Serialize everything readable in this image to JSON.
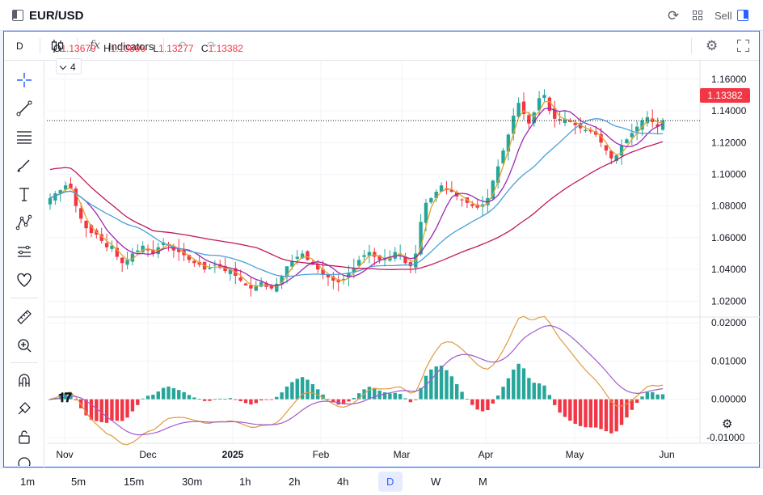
{
  "header": {
    "symbol": "EUR/USD",
    "sell_label": "Sell"
  },
  "toolbar": {
    "interval": "D",
    "indicators_label": "Indicators"
  },
  "legend": {
    "open_label": "O",
    "open": "1.13679",
    "high_label": "H",
    "high": "1.13896",
    "low_label": "L",
    "low": "1.13277",
    "close_label": "C",
    "close": "1.13382",
    "indicator_count": "4"
  },
  "price_axis": {
    "ticks": [
      "1.16000",
      "1.14000",
      "1.12000",
      "1.10000",
      "1.08000",
      "1.06000",
      "1.04000",
      "1.02000"
    ],
    "current_price": "1.13382"
  },
  "osc_axis": {
    "ticks": [
      "0.02000",
      "0.01000",
      "0.00000",
      "-0.01000"
    ]
  },
  "time_axis": {
    "labels": [
      "Nov",
      "Dec",
      "2025",
      "Feb",
      "Mar",
      "Apr",
      "May",
      "Jun"
    ]
  },
  "timeframes": [
    "1m",
    "5m",
    "15m",
    "30m",
    "1h",
    "2h",
    "4h",
    "D",
    "W",
    "M"
  ],
  "active_timeframe": "D",
  "colors": {
    "up": "#26a69a",
    "down": "#f23645",
    "ma_fast": "#e3a52a",
    "ma_mid": "#9c27b0",
    "ma_slow": "#4a9fd8",
    "ma_long": "#c2185b",
    "macd": "#e09b3d",
    "signal": "#a05ccf",
    "accent": "#2962ff"
  },
  "chart_data": {
    "type": "candlestick",
    "price_range": [
      1.01,
      1.165
    ],
    "osc_range": [
      -0.0115,
      0.0215
    ],
    "x_range": [
      "2024-10-28",
      "2025-06-01"
    ],
    "close_series": [
      1.085,
      1.088,
      1.09,
      1.093,
      1.091,
      1.08,
      1.072,
      1.066,
      1.063,
      1.062,
      1.058,
      1.054,
      1.055,
      1.048,
      1.044,
      1.046,
      1.05,
      1.052,
      1.055,
      1.052,
      1.05,
      1.054,
      1.057,
      1.056,
      1.052,
      1.051,
      1.049,
      1.046,
      1.044,
      1.043,
      1.04,
      1.041,
      1.043,
      1.041,
      1.039,
      1.04,
      1.036,
      1.033,
      1.03,
      1.028,
      1.03,
      1.032,
      1.029,
      1.028,
      1.031,
      1.036,
      1.042,
      1.045,
      1.048,
      1.05,
      1.046,
      1.043,
      1.04,
      1.037,
      1.035,
      1.033,
      1.032,
      1.034,
      1.038,
      1.041,
      1.046,
      1.049,
      1.051,
      1.048,
      1.046,
      1.047,
      1.048,
      1.051,
      1.05,
      1.044,
      1.042,
      1.05,
      1.07,
      1.082,
      1.085,
      1.089,
      1.093,
      1.09,
      1.089,
      1.086,
      1.084,
      1.082,
      1.08,
      1.079,
      1.081,
      1.085,
      1.096,
      1.105,
      1.115,
      1.125,
      1.137,
      1.145,
      1.138,
      1.132,
      1.139,
      1.148,
      1.15,
      1.14,
      1.135,
      1.134,
      1.135,
      1.133,
      1.131,
      1.129,
      1.128,
      1.127,
      1.125,
      1.12,
      1.115,
      1.11,
      1.112,
      1.118,
      1.122,
      1.126,
      1.13,
      1.134,
      1.136,
      1.133,
      1.13,
      1.134
    ]
  }
}
